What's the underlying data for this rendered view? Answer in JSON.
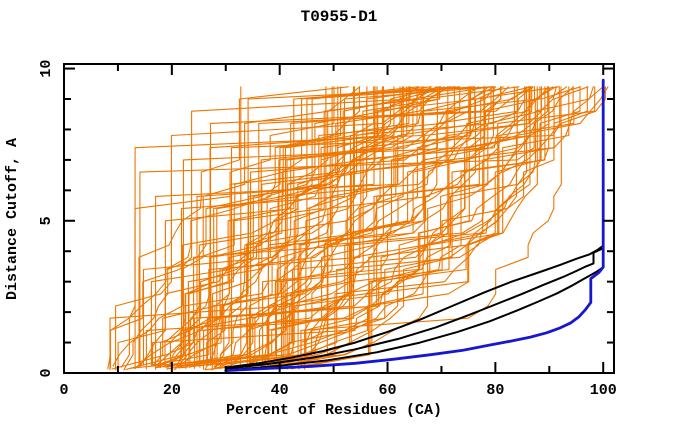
{
  "chart_data": {
    "type": "line",
    "title": "T0955-D1",
    "xlabel": "Percent of Residues (CA)",
    "ylabel": "Distance Cutoff, A",
    "xlim": [
      0,
      102
    ],
    "ylim": [
      0,
      10.15
    ],
    "x_major_ticks": [
      0,
      20,
      40,
      60,
      80,
      100
    ],
    "x_minor_ticks": [
      10,
      30,
      50,
      70,
      90
    ],
    "y_major_ticks": [
      0,
      5,
      10
    ],
    "y_minor_ticks": [
      1,
      2,
      3,
      4,
      6,
      7,
      8,
      9
    ],
    "grid": false,
    "legend": "none",
    "colors": {
      "predictions": "#ee7600",
      "reference": "#000000",
      "best_model": "#1717cf",
      "axis": "#000000",
      "background": "#ffffff"
    },
    "series": [
      {
        "name": "reference-line-1",
        "color_key": "reference",
        "width": 2,
        "points": [
          [
            30,
            0.18
          ],
          [
            36,
            0.32
          ],
          [
            42,
            0.5
          ],
          [
            48,
            0.72
          ],
          [
            54,
            1.0
          ],
          [
            60,
            1.35
          ],
          [
            66,
            1.75
          ],
          [
            72,
            2.2
          ],
          [
            78,
            2.65
          ],
          [
            83,
            3.0
          ],
          [
            88,
            3.3
          ],
          [
            92,
            3.55
          ],
          [
            95,
            3.75
          ],
          [
            97.5,
            3.9
          ],
          [
            99,
            4.05
          ],
          [
            100,
            4.18
          ],
          [
            100,
            4.4
          ]
        ]
      },
      {
        "name": "reference-line-2",
        "color_key": "reference",
        "width": 2,
        "points": [
          [
            30,
            0.14
          ],
          [
            38,
            0.3
          ],
          [
            46,
            0.5
          ],
          [
            54,
            0.78
          ],
          [
            62,
            1.12
          ],
          [
            69,
            1.5
          ],
          [
            75,
            1.9
          ],
          [
            80,
            2.25
          ],
          [
            85,
            2.6
          ],
          [
            89,
            2.9
          ],
          [
            92.5,
            3.15
          ],
          [
            95,
            3.35
          ],
          [
            96.8,
            3.5
          ],
          [
            98.2,
            3.6
          ],
          [
            98.2,
            3.95
          ],
          [
            100,
            4.1
          ]
        ]
      },
      {
        "name": "reference-line-3",
        "color_key": "reference",
        "width": 2,
        "points": [
          [
            31,
            0.1
          ],
          [
            40,
            0.24
          ],
          [
            49,
            0.42
          ],
          [
            58,
            0.68
          ],
          [
            66,
            1.0
          ],
          [
            73,
            1.35
          ],
          [
            79,
            1.7
          ],
          [
            84,
            2.05
          ],
          [
            88,
            2.35
          ],
          [
            91.5,
            2.62
          ],
          [
            94,
            2.85
          ],
          [
            96,
            3.05
          ],
          [
            97.5,
            3.2
          ],
          [
            99,
            3.35
          ],
          [
            99.8,
            3.45
          ]
        ]
      },
      {
        "name": "best-model-line",
        "color_key": "best_model",
        "width": 2.8,
        "points": [
          [
            30,
            0.08
          ],
          [
            38,
            0.15
          ],
          [
            46,
            0.22
          ],
          [
            54,
            0.32
          ],
          [
            61,
            0.45
          ],
          [
            68,
            0.6
          ],
          [
            74,
            0.75
          ],
          [
            79,
            0.92
          ],
          [
            83,
            1.05
          ],
          [
            86.5,
            1.18
          ],
          [
            89.5,
            1.32
          ],
          [
            92,
            1.48
          ],
          [
            94,
            1.65
          ],
          [
            95.5,
            1.85
          ],
          [
            96.7,
            2.08
          ],
          [
            97.7,
            2.32
          ],
          [
            97.7,
            3.1
          ],
          [
            99.2,
            3.3
          ],
          [
            100,
            3.48
          ],
          [
            100,
            9.62
          ]
        ]
      }
    ],
    "orange_ensemble": {
      "name": "prediction-lines",
      "color_key": "predictions",
      "width": 1.1,
      "count": 110,
      "seed": 955,
      "x_start_range": [
        8,
        45
      ],
      "cutoff_start": 0.2,
      "cutoff_max": 9.6,
      "step": 0.4,
      "x_clip": 101
    }
  }
}
